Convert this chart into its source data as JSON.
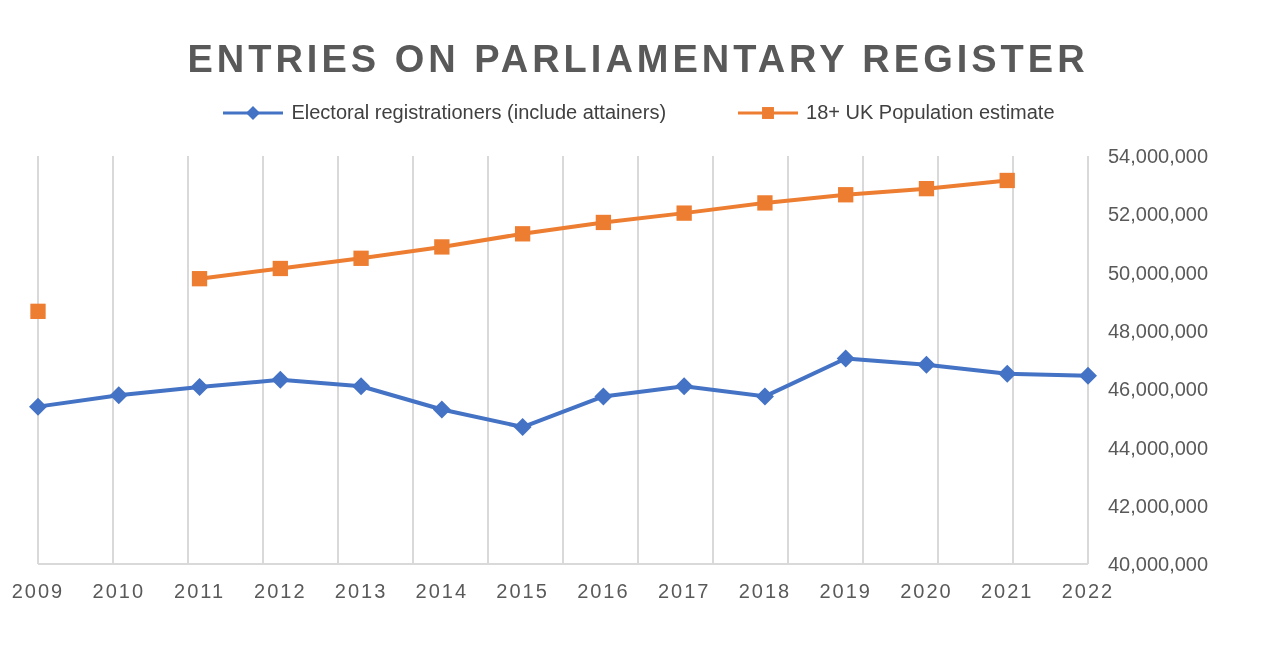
{
  "chart_data": {
    "type": "line",
    "title": "ENTRIES ON PARLIAMENTARY REGISTER",
    "categories": [
      "2009",
      "2010",
      "2011",
      "2012",
      "2013",
      "2014",
      "2015",
      "2016",
      "2017",
      "2018",
      "2019",
      "2020",
      "2021",
      "2022"
    ],
    "series": [
      {
        "name": "Electoral registrationers (include attainers)",
        "color": "#4472c4",
        "marker": "diamond",
        "values": [
          45400000,
          45790000,
          46070000,
          46320000,
          46100000,
          45300000,
          44700000,
          45750000,
          46100000,
          45750000,
          47050000,
          46840000,
          46530000,
          46460000
        ]
      },
      {
        "name": "18+ UK Population estimate",
        "color": "#ed7d31",
        "marker": "square",
        "values": [
          48670000,
          null,
          49790000,
          50140000,
          50490000,
          50880000,
          51330000,
          51720000,
          52040000,
          52390000,
          52670000,
          52880000,
          53160000,
          null
        ]
      }
    ],
    "ylim": [
      40000000,
      54000000
    ],
    "yticks": [
      {
        "value": 40000000,
        "label": "40,000,000"
      },
      {
        "value": 42000000,
        "label": "42,000,000"
      },
      {
        "value": 44000000,
        "label": "44,000,000"
      },
      {
        "value": 46000000,
        "label": "46,000,000"
      },
      {
        "value": 48000000,
        "label": "48,000,000"
      },
      {
        "value": 50000000,
        "label": "50,000,000"
      },
      {
        "value": 52000000,
        "label": "52,000,000"
      },
      {
        "value": 54000000,
        "label": "54,000,000"
      }
    ],
    "grid": "x",
    "legend": "top",
    "line_style": "solid"
  }
}
